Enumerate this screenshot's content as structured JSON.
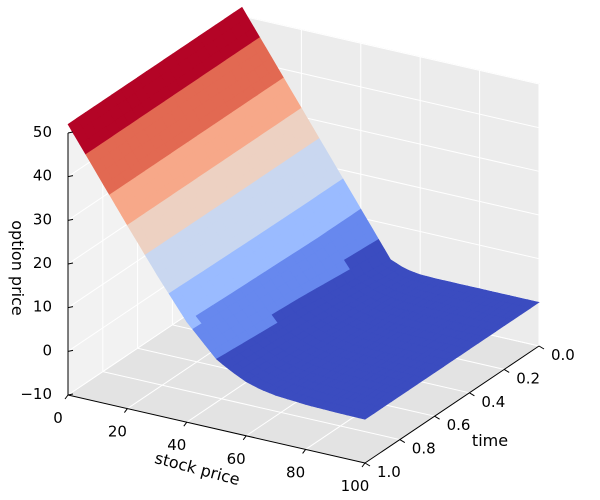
{
  "chart_data": {
    "type": "surface",
    "title": "",
    "xlabel": "stock price",
    "ylabel": "time",
    "zlabel": "option price",
    "xlim": [
      0,
      100
    ],
    "ylim": [
      0.0,
      1.0
    ],
    "zlim": [
      -10,
      50
    ],
    "x_ticks": [
      0,
      20,
      40,
      60,
      80,
      100
    ],
    "y_ticks": [
      0.0,
      0.2,
      0.4,
      0.6,
      0.8,
      1.0
    ],
    "z_ticks": [
      -10,
      0,
      10,
      20,
      30,
      40,
      50
    ],
    "x_tick_labels": [
      "0",
      "20",
      "40",
      "60",
      "80",
      "100"
    ],
    "y_tick_labels": [
      "0.0",
      "0.2",
      "0.4",
      "0.6",
      "0.8",
      "1.0"
    ],
    "z_tick_labels": [
      "−10",
      "0",
      "10",
      "20",
      "30",
      "40",
      "50"
    ],
    "colormap": "coolwarm",
    "grid": true,
    "stock_price": [
      0,
      10,
      20,
      30,
      40,
      50,
      55,
      60,
      65,
      70,
      80,
      90,
      100
    ],
    "time": [
      0.0,
      0.25,
      0.5,
      0.75,
      1.0
    ],
    "option_price": [
      [
        52,
        42,
        32,
        22,
        12,
        2,
        0.6,
        0.1,
        0,
        0,
        0,
        0,
        0
      ],
      [
        52,
        42,
        32,
        22,
        12,
        3.2,
        1.8,
        0.8,
        0.3,
        0.1,
        0,
        0,
        0
      ],
      [
        52,
        42,
        32,
        22,
        12.3,
        4.4,
        2.6,
        1.4,
        0.7,
        0.3,
        0.1,
        0,
        0
      ],
      [
        52,
        42,
        32,
        22.1,
        12.6,
        5.2,
        3.3,
        1.9,
        1.0,
        0.5,
        0.2,
        0.1,
        0
      ],
      [
        52,
        42,
        32,
        22.2,
        13,
        6,
        4,
        2.4,
        1.4,
        0.8,
        0.3,
        0.1,
        0
      ]
    ],
    "colors": [
      "#3b4cc0",
      "#6788ee",
      "#9abbff",
      "#c9d7f0",
      "#edd1c2",
      "#f7a889",
      "#e26952",
      "#b40426"
    ]
  }
}
